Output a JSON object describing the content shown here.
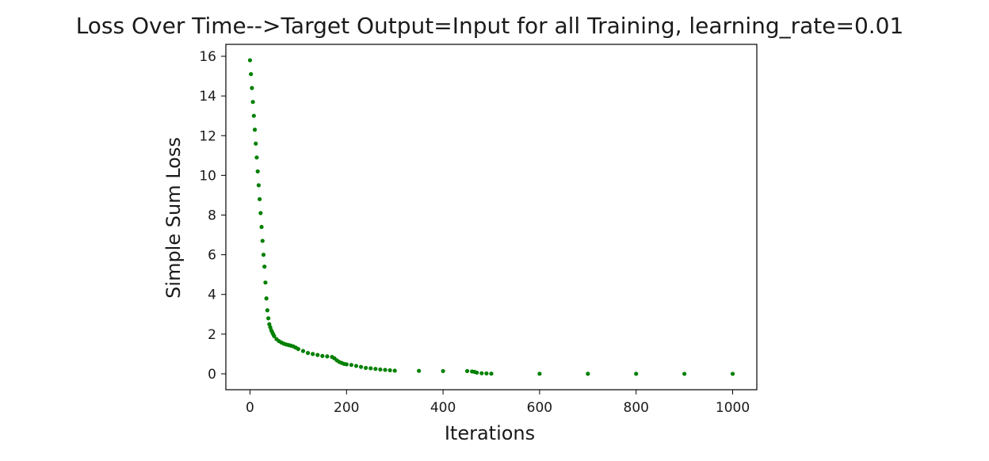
{
  "chart_data": {
    "type": "scatter",
    "title": "Loss Over Time-->Target Output=Input for all Training, learning_rate=0.01",
    "xlabel": "Iterations",
    "ylabel": "Simple Sum Loss",
    "xlim": [
      -50,
      1050
    ],
    "ylim": [
      -0.8,
      16.6
    ],
    "xticks": [
      "0",
      "200",
      "400",
      "600",
      "800",
      "1000"
    ],
    "yticks": [
      "0",
      "2",
      "4",
      "6",
      "8",
      "10",
      "12",
      "14",
      "16"
    ],
    "grid": false,
    "marker_color": "#008000",
    "series": [
      {
        "points_x": [
          0,
          2,
          4,
          6,
          8,
          10,
          12,
          14,
          16,
          18,
          20,
          22,
          24,
          26,
          28,
          30,
          32,
          34,
          36,
          38,
          40,
          42,
          44,
          46,
          48,
          50,
          55,
          60,
          65,
          70,
          75,
          80,
          85,
          90,
          95,
          100,
          110,
          120,
          130,
          140,
          150,
          160,
          170,
          175,
          180,
          185,
          190,
          195,
          200,
          210,
          220,
          230,
          240,
          250,
          260,
          270,
          280,
          290,
          300,
          350,
          400,
          450,
          460,
          465,
          470,
          480,
          490,
          500,
          600,
          700,
          800,
          900,
          1000
        ],
        "points_y": [
          15.8,
          15.1,
          14.4,
          13.7,
          13.0,
          12.3,
          11.6,
          10.9,
          10.2,
          9.5,
          8.8,
          8.1,
          7.4,
          6.7,
          6.0,
          5.4,
          4.6,
          3.8,
          3.2,
          2.8,
          2.5,
          2.35,
          2.2,
          2.1,
          2.0,
          1.9,
          1.75,
          1.65,
          1.58,
          1.52,
          1.48,
          1.45,
          1.42,
          1.38,
          1.32,
          1.25,
          1.15,
          1.05,
          1.0,
          0.95,
          0.9,
          0.88,
          0.85,
          0.78,
          0.68,
          0.6,
          0.55,
          0.5,
          0.48,
          0.45,
          0.4,
          0.35,
          0.3,
          0.28,
          0.25,
          0.22,
          0.2,
          0.18,
          0.16,
          0.15,
          0.14,
          0.14,
          0.12,
          0.1,
          0.06,
          0.03,
          0.02,
          0.01,
          0.005,
          0.003,
          0.002,
          0.001,
          0.0
        ]
      }
    ]
  }
}
